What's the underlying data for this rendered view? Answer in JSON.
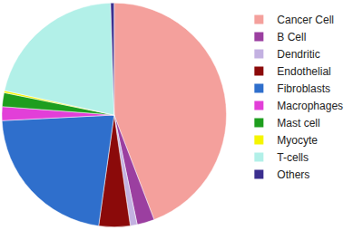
{
  "chart_data": {
    "type": "pie",
    "categories": [
      "Cancer Cell",
      "B Cell",
      "Dendritic",
      "Endothelial",
      "Fibroblasts",
      "Macrophages",
      "Mast cell",
      "Myocyte",
      "T-cells",
      "Others"
    ],
    "values": [
      44.2,
      2.5,
      1,
      4.5,
      22,
      2,
      2,
      0.3,
      21,
      0.5
    ],
    "colors": [
      "#f4a09c",
      "#9b3fa0",
      "#c3b1e1",
      "#8b0a0a",
      "#2f6fcc",
      "#e23fd8",
      "#1e9e1e",
      "#f5f500",
      "#b2f0e8",
      "#3b2f8f"
    ],
    "legend": "right"
  }
}
